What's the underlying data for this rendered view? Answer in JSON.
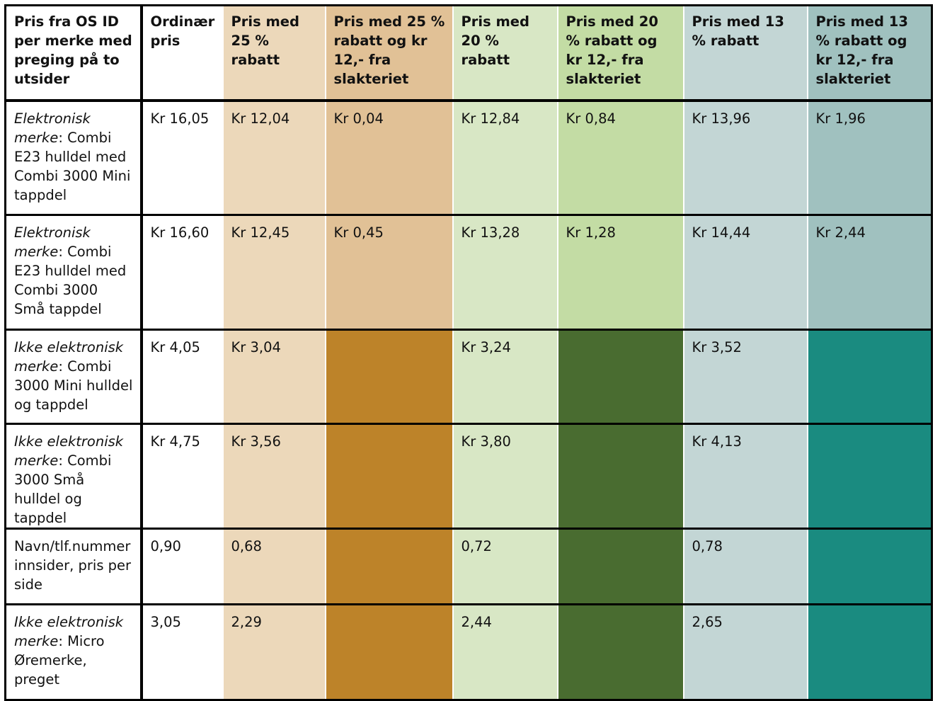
{
  "colors": {
    "col_ordinary": "#ffffff",
    "col_25": "#ecd8ba",
    "col_25_slakt": "#e1c196",
    "col_25_slakt_na": "#bd8329",
    "col_20": "#d8e7c5",
    "col_20_slakt": "#c3dca4",
    "col_20_slakt_na": "#496c30",
    "col_13": "#c3d6d5",
    "col_13_slakt": "#a0c1bf",
    "col_13_slakt_na": "#1a8b80"
  },
  "table": {
    "headers": [
      "Pris fra OS ID per merke med preging på to utsider",
      "Ordinær pris",
      "Pris med 25 % rabatt",
      "Pris med 25 % rabatt og kr 12,- fra slakteriet",
      "Pris med 20 % rabatt",
      "Pris med 20 % rabatt og kr 12,- fra slakteriet",
      "Pris med 13 % rabatt",
      "Pris med 13 % rabatt og kr 12,- fra slakteriet"
    ],
    "rows": [
      {
        "label_italic": "Elektronisk merke",
        "label_rest": ": Combi E23 hulldel med Combi 3000 Mini tappdel",
        "values": [
          "Kr 16,05",
          "Kr 12,04",
          "Kr 0,04",
          "Kr 12,84",
          "Kr 0,84",
          "Kr 13,96",
          "Kr 1,96"
        ]
      },
      {
        "label_italic": "Elektronisk merke",
        "label_rest": ": Combi E23 hulldel med Combi 3000 Små tappdel",
        "values": [
          "Kr 16,60",
          "Kr 12,45",
          "Kr 0,45",
          "Kr 13,28",
          "Kr 1,28",
          "Kr 14,44",
          "Kr 2,44"
        ]
      },
      {
        "label_italic": "Ikke elektronisk merke",
        "label_rest": ": Combi 3000 Mini hulldel og tappdel",
        "values": [
          "Kr 4,05",
          "Kr 3,04",
          "",
          "Kr 3,24",
          "",
          "Kr 3,52",
          ""
        ]
      },
      {
        "label_italic": "Ikke elektronisk merke",
        "label_rest": ": Combi 3000 Små hulldel og tappdel",
        "values": [
          "Kr 4,75",
          "Kr 3,56",
          "",
          "Kr 3,80",
          "",
          "Kr 4,13",
          ""
        ]
      },
      {
        "label_italic": "",
        "label_rest": "Navn/tlf.nummer innsider, pris per side",
        "values": [
          "0,90",
          "0,68",
          "",
          "0,72",
          "",
          "0,78",
          ""
        ]
      },
      {
        "label_italic": "Ikke elektronisk merke",
        "label_rest": ": Micro Øremerke, preget",
        "values": [
          "3,05",
          "2,29",
          "",
          "2,44",
          "",
          "2,65",
          ""
        ]
      }
    ]
  }
}
